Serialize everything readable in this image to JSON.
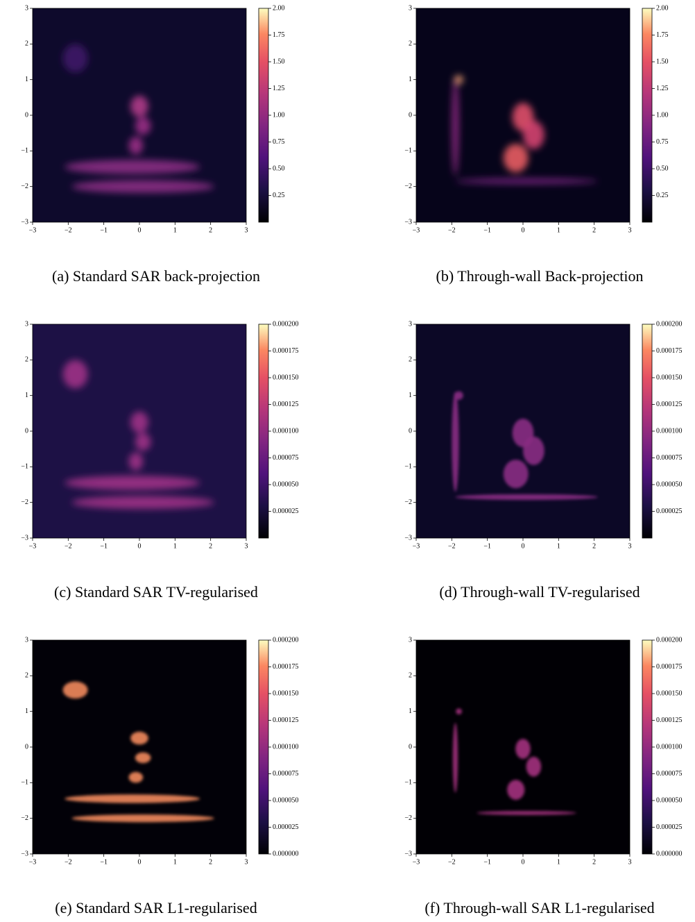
{
  "figure": {
    "panels": [
      {
        "caption": "(a) Standard SAR back-projection",
        "xlim": [
          -3,
          3
        ],
        "ylim": [
          -3,
          3
        ],
        "xticks": [
          {
            "value": -3,
            "label": "−3"
          },
          {
            "value": -2,
            "label": "−2"
          },
          {
            "value": -1,
            "label": "−1"
          },
          0,
          1,
          2,
          3
        ],
        "yticks": [
          {
            "value": -3,
            "label": "−3"
          },
          {
            "value": -2,
            "label": "−2"
          },
          {
            "value": -1,
            "label": "−1"
          },
          0,
          1,
          2,
          3
        ],
        "colorbar": {
          "lim": [
            0,
            2
          ],
          "ticks": [
            {
              "value": 0.25,
              "label": "0.25"
            },
            {
              "value": 0.5,
              "label": "0.50"
            },
            {
              "value": 0.75,
              "label": "0.75"
            },
            {
              "value": 1,
              "label": "1.00"
            },
            {
              "value": 1.25,
              "label": "1.25"
            },
            {
              "value": 1.5,
              "label": "1.50"
            },
            {
              "value": 1.75,
              "label": "1.75"
            },
            {
              "value": 2,
              "label": "2.00"
            }
          ]
        }
      },
      {
        "caption": "(b) Through-wall Back-projection",
        "xlim": [
          -3,
          3
        ],
        "ylim": [
          -3,
          3
        ],
        "xticks": [
          {
            "value": -3,
            "label": "−3"
          },
          {
            "value": -2,
            "label": "−2"
          },
          {
            "value": -1,
            "label": "−1"
          },
          0,
          1,
          2,
          3
        ],
        "yticks": [
          {
            "value": -3,
            "label": "−3"
          },
          {
            "value": -2,
            "label": "−2"
          },
          {
            "value": -1,
            "label": "−1"
          },
          0,
          1,
          2,
          3
        ],
        "colorbar": {
          "lim": [
            0,
            2
          ],
          "ticks": [
            {
              "value": 0.25,
              "label": "0.25"
            },
            {
              "value": 0.5,
              "label": "0.50"
            },
            {
              "value": 0.75,
              "label": "0.75"
            },
            {
              "value": 1,
              "label": "1.00"
            },
            {
              "value": 1.25,
              "label": "1.25"
            },
            {
              "value": 1.5,
              "label": "1.50"
            },
            {
              "value": 1.75,
              "label": "1.75"
            },
            {
              "value": 2,
              "label": "2.00"
            }
          ]
        }
      },
      {
        "caption": "(c) Standard SAR TV-regularised",
        "xlim": [
          -3,
          3
        ],
        "ylim": [
          -3,
          3
        ],
        "xticks": [
          {
            "value": -3,
            "label": "−3"
          },
          {
            "value": -2,
            "label": "−2"
          },
          {
            "value": -1,
            "label": "−1"
          },
          0,
          1,
          2,
          3
        ],
        "yticks": [
          {
            "value": -3,
            "label": "−3"
          },
          {
            "value": -2,
            "label": "−2"
          },
          {
            "value": -1,
            "label": "−1"
          },
          0,
          1,
          2,
          3
        ],
        "colorbar": {
          "lim": [
            0,
            0.0002
          ],
          "ticks": [
            {
              "value": 2.5e-05,
              "label": "0.000025"
            },
            {
              "value": 5e-05,
              "label": "0.000050"
            },
            {
              "value": 7.5e-05,
              "label": "0.000075"
            },
            {
              "value": 0.0001,
              "label": "0.000100"
            },
            {
              "value": 0.000125,
              "label": "0.000125"
            },
            {
              "value": 0.00015,
              "label": "0.000150"
            },
            {
              "value": 0.000175,
              "label": "0.000175"
            },
            {
              "value": 0.0002,
              "label": "0.000200"
            }
          ]
        }
      },
      {
        "caption": "(d) Through-wall TV-regularised",
        "xlim": [
          -3,
          3
        ],
        "ylim": [
          -3,
          3
        ],
        "xticks": [
          {
            "value": -3,
            "label": "−3"
          },
          {
            "value": -2,
            "label": "−2"
          },
          {
            "value": -1,
            "label": "−1"
          },
          0,
          1,
          2,
          3
        ],
        "yticks": [
          {
            "value": -3,
            "label": "−3"
          },
          {
            "value": -2,
            "label": "−2"
          },
          {
            "value": -1,
            "label": "−1"
          },
          0,
          1,
          2,
          3
        ],
        "colorbar": {
          "lim": [
            0,
            0.0002
          ],
          "ticks": [
            {
              "value": 2.5e-05,
              "label": "0.000025"
            },
            {
              "value": 5e-05,
              "label": "0.000050"
            },
            {
              "value": 7.5e-05,
              "label": "0.000075"
            },
            {
              "value": 0.0001,
              "label": "0.000100"
            },
            {
              "value": 0.000125,
              "label": "0.000125"
            },
            {
              "value": 0.00015,
              "label": "0.000150"
            },
            {
              "value": 0.000175,
              "label": "0.000175"
            },
            {
              "value": 0.0002,
              "label": "0.000200"
            }
          ]
        }
      },
      {
        "caption": "(e) Standard SAR L1-regularised",
        "xlim": [
          -3,
          3
        ],
        "ylim": [
          -3,
          3
        ],
        "xticks": [
          {
            "value": -3,
            "label": "−3"
          },
          {
            "value": -2,
            "label": "−2"
          },
          {
            "value": -1,
            "label": "−1"
          },
          0,
          1,
          2,
          3
        ],
        "yticks": [
          {
            "value": -3,
            "label": "−3"
          },
          {
            "value": -2,
            "label": "−2"
          },
          {
            "value": -1,
            "label": "−1"
          },
          0,
          1,
          2,
          3
        ],
        "colorbar": {
          "lim": [
            0,
            0.0002
          ],
          "ticks": [
            {
              "value": 0,
              "label": "0.000000"
            },
            {
              "value": 2.5e-05,
              "label": "0.000025"
            },
            {
              "value": 5e-05,
              "label": "0.000050"
            },
            {
              "value": 7.5e-05,
              "label": "0.000075"
            },
            {
              "value": 0.0001,
              "label": "0.000100"
            },
            {
              "value": 0.000125,
              "label": "0.000125"
            },
            {
              "value": 0.00015,
              "label": "0.000150"
            },
            {
              "value": 0.000175,
              "label": "0.000175"
            },
            {
              "value": 0.0002,
              "label": "0.000200"
            }
          ]
        }
      },
      {
        "caption": "(f) Through-wall SAR L1-regularised",
        "xlim": [
          -3,
          3
        ],
        "ylim": [
          -3,
          3
        ],
        "xticks": [
          {
            "value": -3,
            "label": "−3"
          },
          {
            "value": -2,
            "label": "−2"
          },
          {
            "value": -1,
            "label": "−1"
          },
          0,
          1,
          2,
          3
        ],
        "yticks": [
          {
            "value": -3,
            "label": "−3"
          },
          {
            "value": -2,
            "label": "−2"
          },
          {
            "value": -1,
            "label": "−1"
          },
          0,
          1,
          2,
          3
        ],
        "colorbar": {
          "lim": [
            0,
            0.0002
          ],
          "ticks": [
            {
              "value": 0,
              "label": "0.000000"
            },
            {
              "value": 2.5e-05,
              "label": "0.000025"
            },
            {
              "value": 5e-05,
              "label": "0.000050"
            },
            {
              "value": 7.5e-05,
              "label": "0.000075"
            },
            {
              "value": 0.0001,
              "label": "0.000100"
            },
            {
              "value": 0.000125,
              "label": "0.000125"
            },
            {
              "value": 0.00015,
              "label": "0.000150"
            },
            {
              "value": 0.000175,
              "label": "0.000175"
            },
            {
              "value": 0.0002,
              "label": "0.000200"
            }
          ]
        }
      }
    ]
  }
}
